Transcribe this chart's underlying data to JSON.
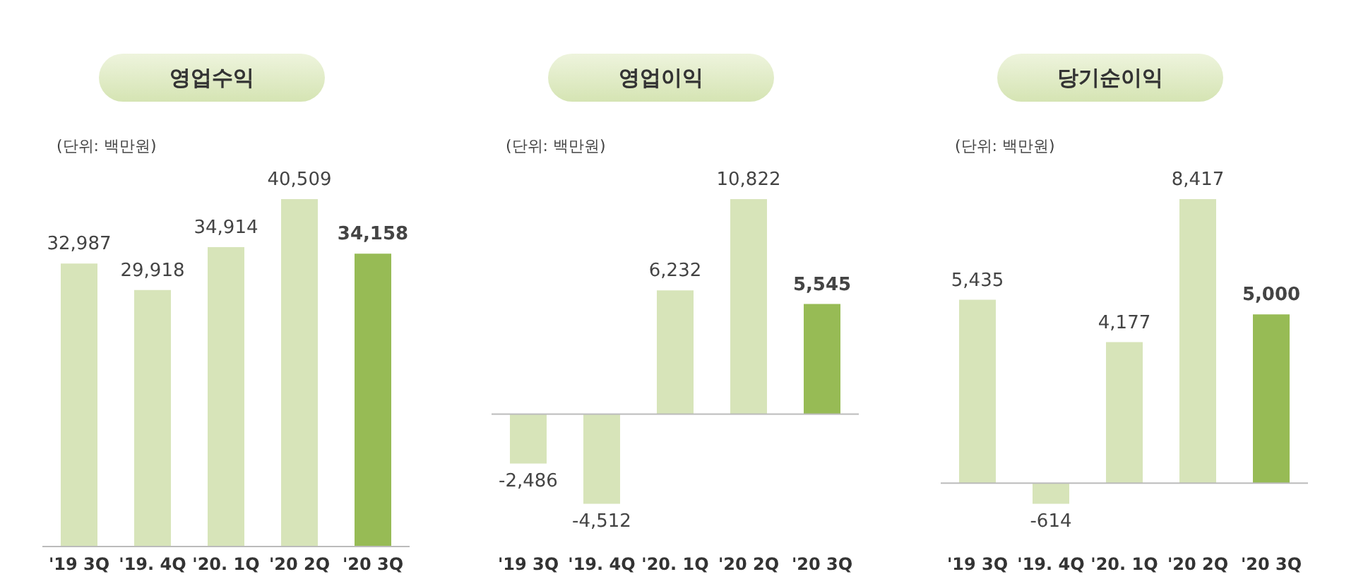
{
  "chart_data": [
    {
      "type": "bar",
      "title": "영업수익",
      "subtitle": "(단위: 백만원)",
      "categories": [
        "'19 3Q",
        "'19. 4Q",
        "'20. 1Q",
        "'20 2Q",
        "'20 3Q"
      ],
      "values": [
        32987,
        29918,
        34914,
        40509,
        34158
      ],
      "colors": [
        "#d7e4b9",
        "#d7e4b9",
        "#d7e4b9",
        "#d7e4b9",
        "#97bb55"
      ],
      "value_labels": [
        "32,987",
        "29,918",
        "34,914",
        "40,509",
        "34,158"
      ]
    },
    {
      "type": "bar",
      "title": "영업이익",
      "subtitle": "(단위: 백만원)",
      "categories": [
        "'19 3Q",
        "'19. 4Q",
        "'20. 1Q",
        "'20 2Q",
        "'20 3Q"
      ],
      "values": [
        -2486,
        -4512,
        6232,
        10822,
        5545
      ],
      "colors": [
        "#d7e4b9",
        "#d7e4b9",
        "#d7e4b9",
        "#d7e4b9",
        "#97bb55"
      ],
      "value_labels": [
        "-2,486",
        "-4,512",
        "6,232",
        "10,822",
        "5,545"
      ]
    },
    {
      "type": "bar",
      "title": "당기순이익",
      "subtitle": "(단위: 백만원)",
      "categories": [
        "'19 3Q",
        "'19. 4Q",
        "'20. 1Q",
        "'20 2Q",
        "'20 3Q"
      ],
      "values": [
        5435,
        -614,
        4177,
        8417,
        5000
      ],
      "colors": [
        "#d7e4b9",
        "#d7e4b9",
        "#d7e4b9",
        "#d7e4b9",
        "#97bb55"
      ],
      "value_labels": [
        "5,435",
        "-614",
        "4,177",
        "8,417",
        "5,000"
      ]
    }
  ]
}
